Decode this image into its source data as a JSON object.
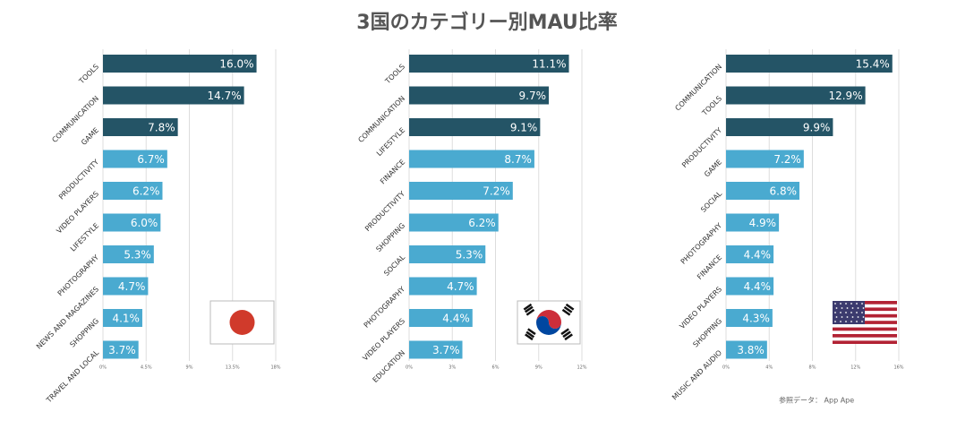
{
  "title": "3国のカテゴリー別MAU比率",
  "note": "参照データ： App Ape",
  "chart_data": [
    {
      "type": "bar",
      "orientation": "horizontal",
      "categories": [
        "TOOLS",
        "COMMUNICATION",
        "GAME",
        "PRODUCTIVITY",
        "VIDEO PLAYERS",
        "LIFESTYLE",
        "PHOTOGRAPHY",
        "NEWS AND MAGAZINES",
        "SHOPPING",
        "TRAVEL AND LOCAL"
      ],
      "values": [
        16.0,
        14.7,
        7.8,
        6.7,
        6.2,
        6.0,
        5.3,
        4.7,
        4.1,
        3.7
      ],
      "value_labels": [
        "16.0%",
        "14.7%",
        "7.8%",
        "6.7%",
        "6.2%",
        "6.0%",
        "5.3%",
        "4.7%",
        "4.1%",
        "3.7%"
      ],
      "colors": [
        "#245466",
        "#245466",
        "#245466",
        "#4aaad0",
        "#4aaad0",
        "#4aaad0",
        "#4aaad0",
        "#4aaad0",
        "#4aaad0",
        "#4aaad0"
      ],
      "xlim": [
        0,
        18
      ],
      "xticks": [
        {
          "value": 0,
          "label": "0%"
        },
        {
          "value": 4.5,
          "label": "4.5%"
        },
        {
          "value": 9,
          "label": "9%"
        },
        {
          "value": 13.5,
          "label": "13.5%"
        },
        {
          "value": 18,
          "label": "18%"
        }
      ],
      "grid": true
    },
    {
      "type": "bar",
      "orientation": "horizontal",
      "categories": [
        "TOOLS",
        "COMMUNICATION",
        "LIFESTYLE",
        "FINANCE",
        "PRODUCTIVITY",
        "SHOPPING",
        "SOCIAL",
        "PHOTOGRAPHY",
        "VIDEO PLAYERS",
        "EDUCATION"
      ],
      "values": [
        11.1,
        9.7,
        9.1,
        8.7,
        7.2,
        6.2,
        5.3,
        4.7,
        4.4,
        3.7
      ],
      "value_labels": [
        "11.1%",
        "9.7%",
        "9.1%",
        "8.7%",
        "7.2%",
        "6.2%",
        "5.3%",
        "4.7%",
        "4.4%",
        "3.7%"
      ],
      "colors": [
        "#245466",
        "#245466",
        "#245466",
        "#4aaad0",
        "#4aaad0",
        "#4aaad0",
        "#4aaad0",
        "#4aaad0",
        "#4aaad0",
        "#4aaad0"
      ],
      "xlim": [
        0,
        12
      ],
      "xticks": [
        {
          "value": 0,
          "label": "0%"
        },
        {
          "value": 3,
          "label": "3%"
        },
        {
          "value": 6,
          "label": "6%"
        },
        {
          "value": 9,
          "label": "9%"
        },
        {
          "value": 12,
          "label": "12%"
        }
      ],
      "grid": true
    },
    {
      "type": "bar",
      "orientation": "horizontal",
      "categories": [
        "COMMUNICATION",
        "TOOLS",
        "PRODUCTIVITY",
        "GAME",
        "SOCIAL",
        "PHOTOGRAPHY",
        "FINANCE",
        "VIDEO PLAYERS",
        "SHOPPING",
        "MUSIC AND AUDIO"
      ],
      "values": [
        15.4,
        12.9,
        9.9,
        7.2,
        6.8,
        4.9,
        4.4,
        4.4,
        4.3,
        3.8
      ],
      "value_labels": [
        "15.4%",
        "12.9%",
        "9.9%",
        "7.2%",
        "6.8%",
        "4.9%",
        "4.4%",
        "4.4%",
        "4.3%",
        "3.8%"
      ],
      "colors": [
        "#245466",
        "#245466",
        "#245466",
        "#4aaad0",
        "#4aaad0",
        "#4aaad0",
        "#4aaad0",
        "#4aaad0",
        "#4aaad0",
        "#4aaad0"
      ],
      "xlim": [
        0,
        16
      ],
      "xticks": [
        {
          "value": 0,
          "label": "0%"
        },
        {
          "value": 4,
          "label": "4%"
        },
        {
          "value": 8,
          "label": "8%"
        },
        {
          "value": 12,
          "label": "12%"
        },
        {
          "value": 16,
          "label": "16%"
        }
      ],
      "grid": true
    }
  ]
}
